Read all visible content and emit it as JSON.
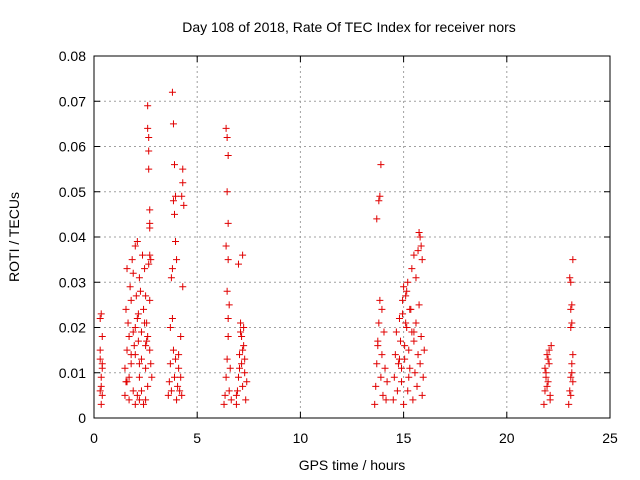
{
  "chart_data": {
    "type": "scatter",
    "title": "Day 108 of 2018, Rate Of TEC Index for receiver nors",
    "xlabel": "GPS time / hours",
    "ylabel": "ROTI / TECUs",
    "xlim": [
      0,
      25
    ],
    "ylim": [
      0,
      0.08
    ],
    "x_ticks": [
      0,
      5,
      10,
      15,
      20,
      25
    ],
    "x_tick_labels": [
      "0",
      "5",
      "10",
      "15",
      "20",
      "25"
    ],
    "y_ticks": [
      0,
      0.01,
      0.02,
      0.03,
      0.04,
      0.05,
      0.06,
      0.07,
      0.08
    ],
    "y_tick_labels": [
      "0",
      "0.01",
      "0.02",
      "0.03",
      "0.04",
      "0.05",
      "0.06",
      "0.07",
      "0.08"
    ],
    "grid": true,
    "marker": "+",
    "color": "#e00000",
    "series": [
      {
        "name": "ROTI",
        "x": [
          0.3,
          0.3,
          0.3,
          0.35,
          0.35,
          0.35,
          0.4,
          0.4,
          0.4,
          0.3,
          0.35,
          0.4,
          1.5,
          1.5,
          1.55,
          1.55,
          1.6,
          1.6,
          1.65,
          1.7,
          1.7,
          1.75,
          1.8,
          1.8,
          1.85,
          1.9,
          1.9,
          2.0,
          2.0,
          2.05,
          2.1,
          2.1,
          2.15,
          2.2,
          2.2,
          2.25,
          2.3,
          2.35,
          2.4,
          2.45,
          2.5,
          2.5,
          2.55,
          2.6,
          2.6,
          2.65,
          2.7,
          2.7,
          2.75,
          2.8,
          1.7,
          1.9,
          2.0,
          2.1,
          2.2,
          2.3,
          2.4,
          2.5,
          2.6,
          2.6,
          2.65,
          2.65,
          2.65,
          2.7,
          2.7,
          2.7,
          2.7,
          2.3,
          2.5,
          2.2,
          2.0,
          1.8,
          1.6,
          2.45,
          2.55,
          2.75,
          2.15,
          1.95,
          3.6,
          3.65,
          3.7,
          3.75,
          3.8,
          3.85,
          3.9,
          3.95,
          4.0,
          4.05,
          4.1,
          4.15,
          4.2,
          4.25,
          3.8,
          3.85,
          3.9,
          3.95,
          3.85,
          3.9,
          3.95,
          4.0,
          4.3,
          4.3,
          4.25,
          4.35,
          4.3,
          4.2,
          4.1,
          3.7,
          3.75,
          3.8,
          6.3,
          6.35,
          6.4,
          6.45,
          6.5,
          6.55,
          6.6,
          6.65,
          6.4,
          6.45,
          6.5,
          6.45,
          6.5,
          6.4,
          6.5,
          6.45,
          6.55,
          6.5,
          6.9,
          6.95,
          7.0,
          7.05,
          7.1,
          7.15,
          7.2,
          7.25,
          7.3,
          7.35,
          7.4,
          7.1,
          7.15,
          7.2,
          7.2,
          7.0,
          7.3,
          6.9,
          7.05,
          7.25,
          13.6,
          13.65,
          13.7,
          13.75,
          13.8,
          13.85,
          13.9,
          13.95,
          14.0,
          14.05,
          14.1,
          14.15,
          14.2,
          13.7,
          13.8,
          13.85,
          13.9,
          13.95,
          13.75,
          14.5,
          14.55,
          14.6,
          14.65,
          14.7,
          14.75,
          14.8,
          14.85,
          14.9,
          14.95,
          15.0,
          15.05,
          15.1,
          15.15,
          15.2,
          15.25,
          15.3,
          15.35,
          15.4,
          15.45,
          15.5,
          15.55,
          15.6,
          15.65,
          15.7,
          15.75,
          15.8,
          15.85,
          15.9,
          15.95,
          16.0,
          15.0,
          15.1,
          15.2,
          15.3,
          15.4,
          15.5,
          15.6,
          15.7,
          15.75,
          15.8,
          15.85,
          15.9,
          15.5,
          14.9,
          14.95,
          15.05,
          15.15,
          15.25,
          14.8,
          21.8,
          21.85,
          21.9,
          21.95,
          22.0,
          22.05,
          22.1,
          22.15,
          21.9,
          22.0,
          22.1,
          21.85,
          21.95,
          22.05,
          23.0,
          23.05,
          23.1,
          23.15,
          23.2,
          23.1,
          23.15,
          23.1,
          23.15,
          23.1,
          23.05,
          23.2,
          23.15,
          23.1,
          23.2
        ],
        "y": [
          0.022,
          0.013,
          0.006,
          0.023,
          0.009,
          0.003,
          0.018,
          0.011,
          0.005,
          0.015,
          0.007,
          0.012,
          0.005,
          0.011,
          0.008,
          0.024,
          0.015,
          0.033,
          0.021,
          0.009,
          0.018,
          0.029,
          0.012,
          0.026,
          0.035,
          0.019,
          0.032,
          0.038,
          0.014,
          0.027,
          0.039,
          0.022,
          0.017,
          0.031,
          0.009,
          0.028,
          0.013,
          0.036,
          0.024,
          0.033,
          0.011,
          0.027,
          0.021,
          0.007,
          0.018,
          0.034,
          0.015,
          0.026,
          0.035,
          0.009,
          0.004,
          0.006,
          0.003,
          0.005,
          0.004,
          0.006,
          0.003,
          0.004,
          0.069,
          0.064,
          0.062,
          0.059,
          0.055,
          0.046,
          0.043,
          0.042,
          0.036,
          0.019,
          0.016,
          0.012,
          0.02,
          0.014,
          0.008,
          0.021,
          0.017,
          0.012,
          0.023,
          0.016,
          0.005,
          0.008,
          0.012,
          0.006,
          0.022,
          0.015,
          0.009,
          0.013,
          0.004,
          0.007,
          0.011,
          0.006,
          0.009,
          0.005,
          0.072,
          0.065,
          0.056,
          0.049,
          0.048,
          0.045,
          0.039,
          0.035,
          0.055,
          0.052,
          0.049,
          0.047,
          0.029,
          0.018,
          0.014,
          0.02,
          0.031,
          0.033,
          0.003,
          0.005,
          0.009,
          0.013,
          0.018,
          0.006,
          0.011,
          0.004,
          0.064,
          0.062,
          0.058,
          0.05,
          0.043,
          0.038,
          0.035,
          0.028,
          0.025,
          0.022,
          0.003,
          0.006,
          0.009,
          0.014,
          0.019,
          0.012,
          0.007,
          0.016,
          0.01,
          0.004,
          0.008,
          0.021,
          0.018,
          0.015,
          0.036,
          0.034,
          0.013,
          0.005,
          0.011,
          0.02,
          0.003,
          0.007,
          0.012,
          0.017,
          0.021,
          0.026,
          0.009,
          0.014,
          0.005,
          0.019,
          0.011,
          0.004,
          0.008,
          0.044,
          0.048,
          0.049,
          0.056,
          0.024,
          0.016,
          0.004,
          0.009,
          0.014,
          0.019,
          0.006,
          0.012,
          0.022,
          0.017,
          0.008,
          0.026,
          0.003,
          0.013,
          0.021,
          0.028,
          0.006,
          0.015,
          0.011,
          0.024,
          0.019,
          0.004,
          0.017,
          0.01,
          0.021,
          0.007,
          0.014,
          0.025,
          0.012,
          0.018,
          0.005,
          0.009,
          0.015,
          0.029,
          0.027,
          0.03,
          0.024,
          0.033,
          0.036,
          0.031,
          0.037,
          0.041,
          0.04,
          0.038,
          0.035,
          0.019,
          0.011,
          0.023,
          0.016,
          0.02,
          0.009,
          0.013,
          0.003,
          0.006,
          0.01,
          0.014,
          0.008,
          0.012,
          0.005,
          0.016,
          0.009,
          0.013,
          0.004,
          0.011,
          0.007,
          0.015,
          0.003,
          0.006,
          0.009,
          0.012,
          0.014,
          0.02,
          0.021,
          0.024,
          0.025,
          0.03,
          0.031,
          0.035,
          0.01,
          0.005,
          0.008
        ]
      }
    ]
  }
}
